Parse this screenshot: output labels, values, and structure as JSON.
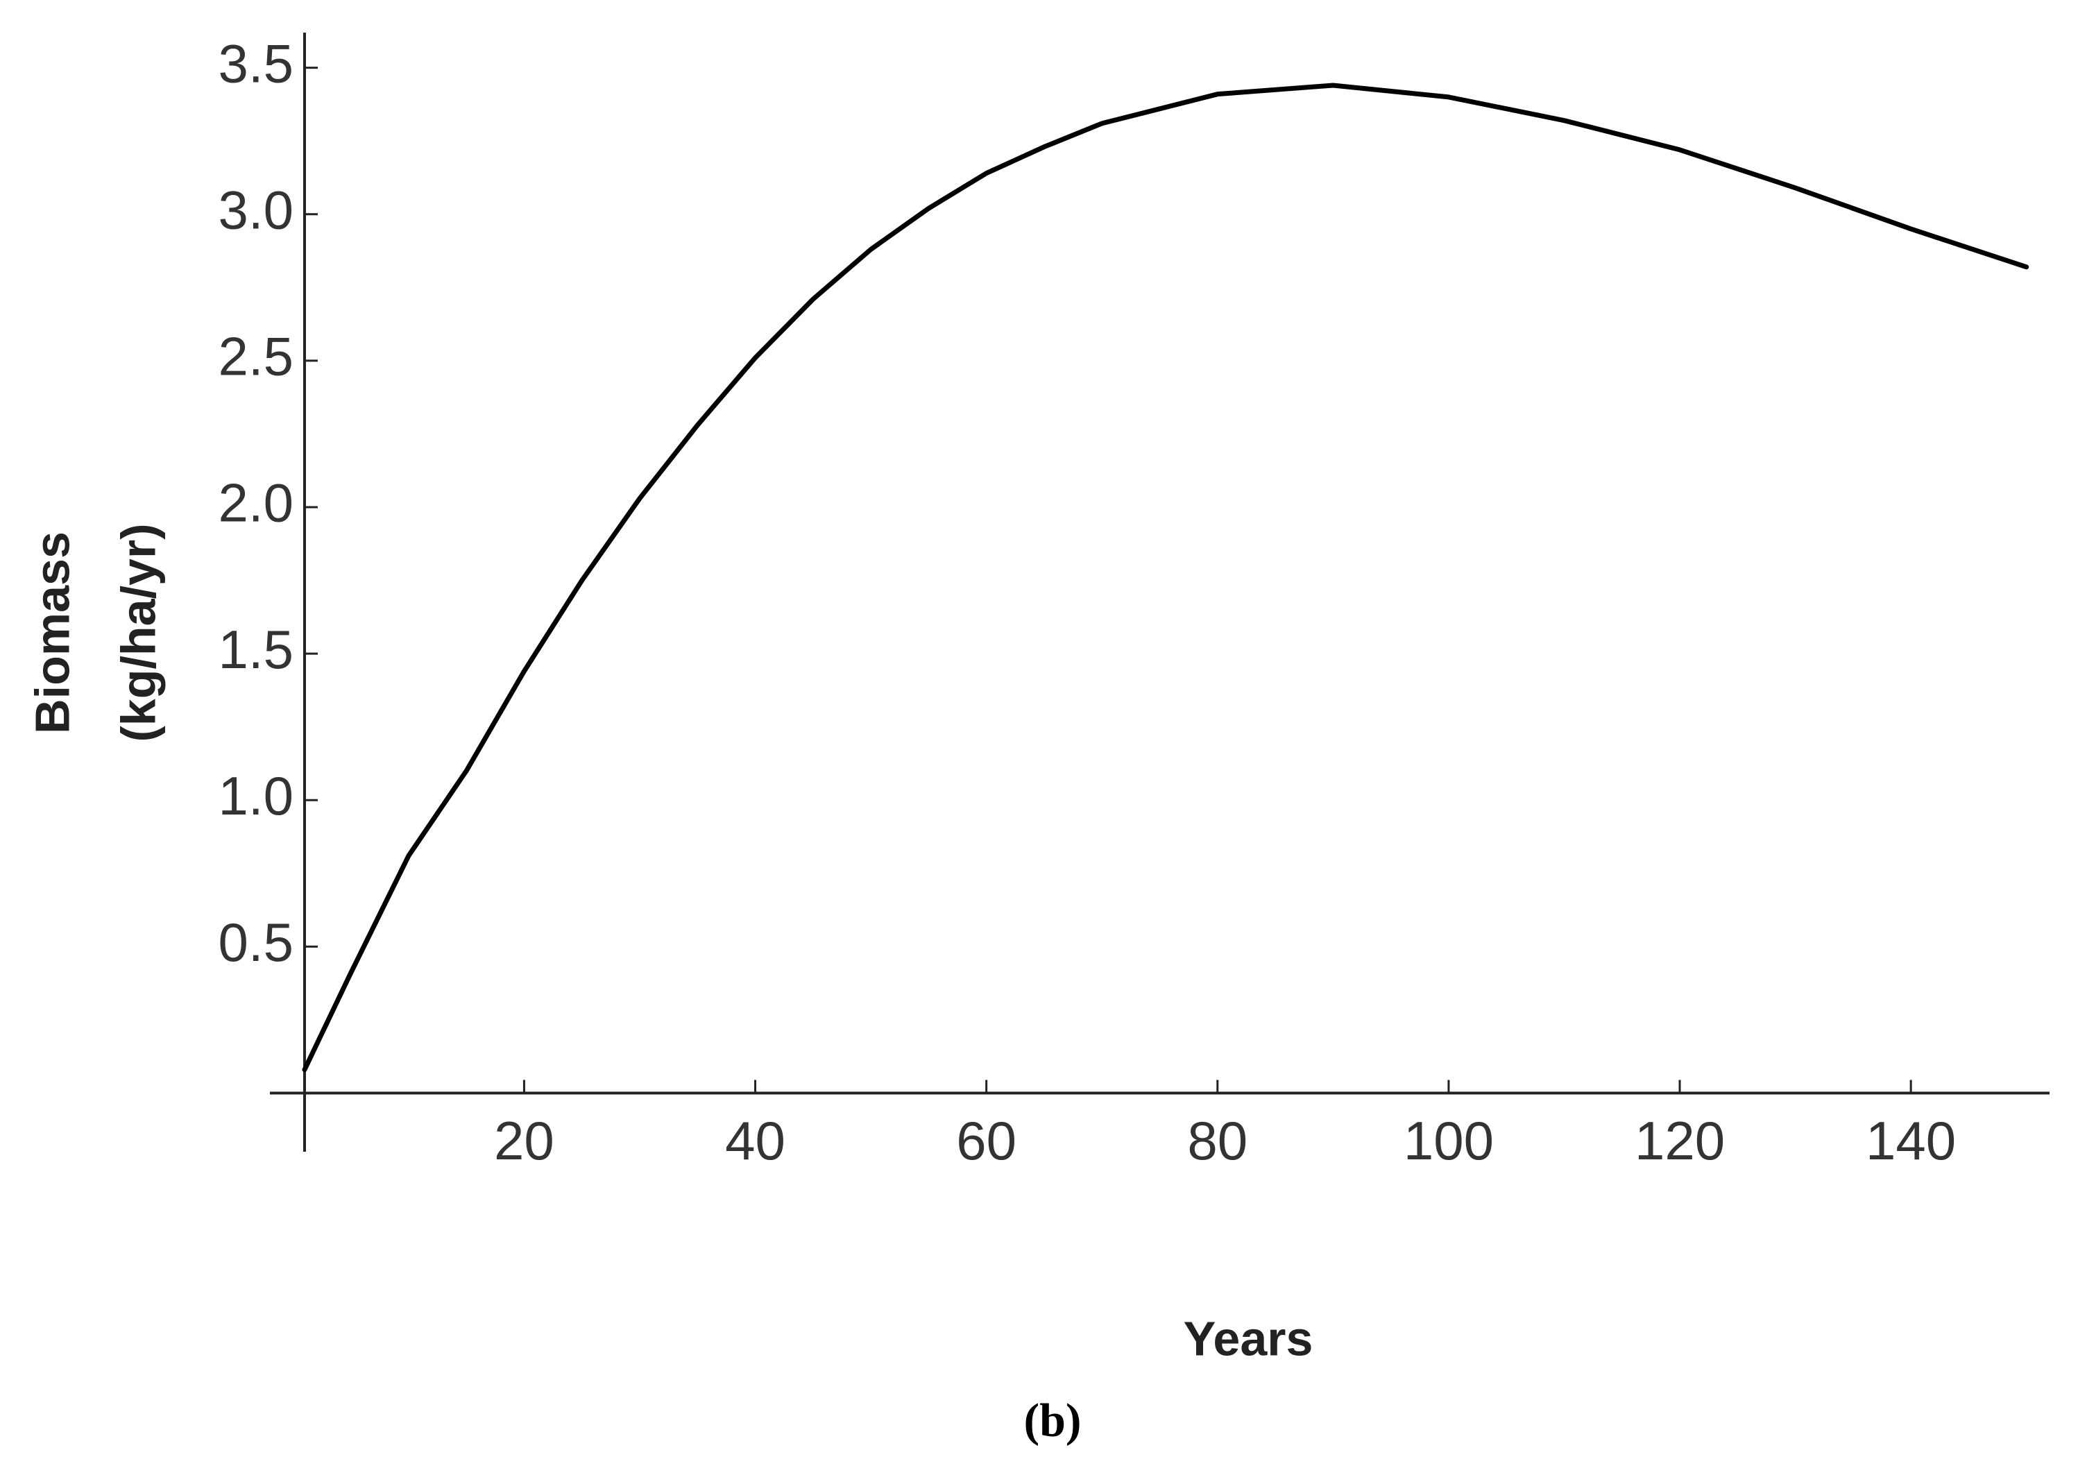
{
  "chart_data": {
    "type": "line",
    "xlabel": "Years",
    "ylabel": [
      "Biomass",
      "(kg/ha/yr)"
    ],
    "x": [
      1,
      5,
      10,
      15,
      20,
      25,
      30,
      35,
      40,
      45,
      50,
      55,
      60,
      65,
      70,
      80,
      90,
      100,
      110,
      120,
      130,
      140,
      150
    ],
    "series": [
      {
        "color": "#000000",
        "values": [
          0.08,
          0.41,
          0.81,
          1.1,
          1.44,
          1.75,
          2.03,
          2.28,
          2.51,
          2.71,
          2.88,
          3.02,
          3.14,
          3.23,
          3.31,
          3.41,
          3.44,
          3.4,
          3.32,
          3.22,
          3.09,
          2.95,
          2.82
        ]
      }
    ],
    "xlim": [
      -2,
      152
    ],
    "ylim": [
      -0.2,
      3.62
    ],
    "yaxis_at": 1,
    "xticks": [
      20,
      40,
      60,
      80,
      100,
      120,
      140
    ],
    "yticks": [
      0.5,
      {
        "value": 1,
        "label": "1.0"
      },
      1.5,
      {
        "value": 2,
        "label": "2.0"
      },
      2.5,
      {
        "value": 3,
        "label": "3.0"
      },
      3.5
    ],
    "grid": false
  },
  "caption": "(b)"
}
